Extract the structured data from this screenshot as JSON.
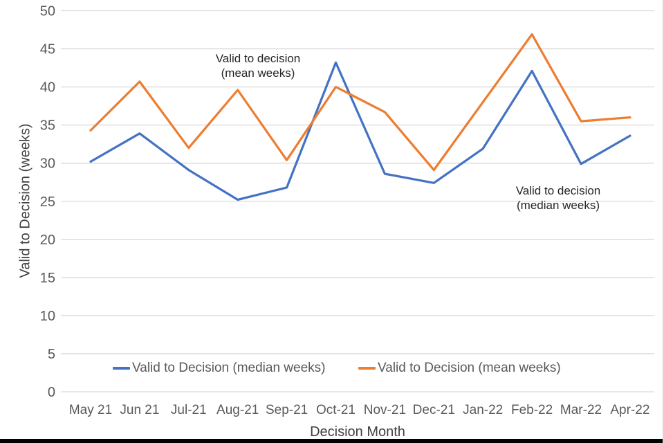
{
  "chart_data": {
    "type": "line",
    "title": "",
    "categories": [
      "May 21",
      "Jun 21",
      "Jul-21",
      "Aug-21",
      "Sep-21",
      "Oct-21",
      "Nov-21",
      "Dec-21",
      "Jan-22",
      "Feb-22",
      "Mar-22",
      "Apr-22"
    ],
    "series": [
      {
        "name": "Valid to Decision (median weeks)",
        "color": "#4472C4",
        "values": [
          30.2,
          33.9,
          29.1,
          25.2,
          26.8,
          43.2,
          28.6,
          27.4,
          31.9,
          42.1,
          29.9,
          33.6
        ]
      },
      {
        "name": "Valid to Decision (mean weeks)",
        "color": "#ED7D31",
        "values": [
          34.3,
          40.7,
          32.0,
          39.6,
          30.4,
          40.0,
          36.7,
          29.1,
          38.0,
          46.9,
          35.5,
          36.0
        ]
      }
    ],
    "xlabel": "Decision Month",
    "ylabel": "Valid to Decision (weeks)",
    "ylim": [
      0,
      50
    ],
    "ytick_step": 5,
    "grid": "horizontal",
    "gridline_color": "#d9d9d9",
    "tick_label_color": "#595959",
    "legend_position": "bottom"
  },
  "annotations": [
    {
      "line1": "Valid to decision",
      "line2": "(mean weeks)"
    },
    {
      "line1": "Valid to decision",
      "line2": "(median weeks)"
    }
  ]
}
